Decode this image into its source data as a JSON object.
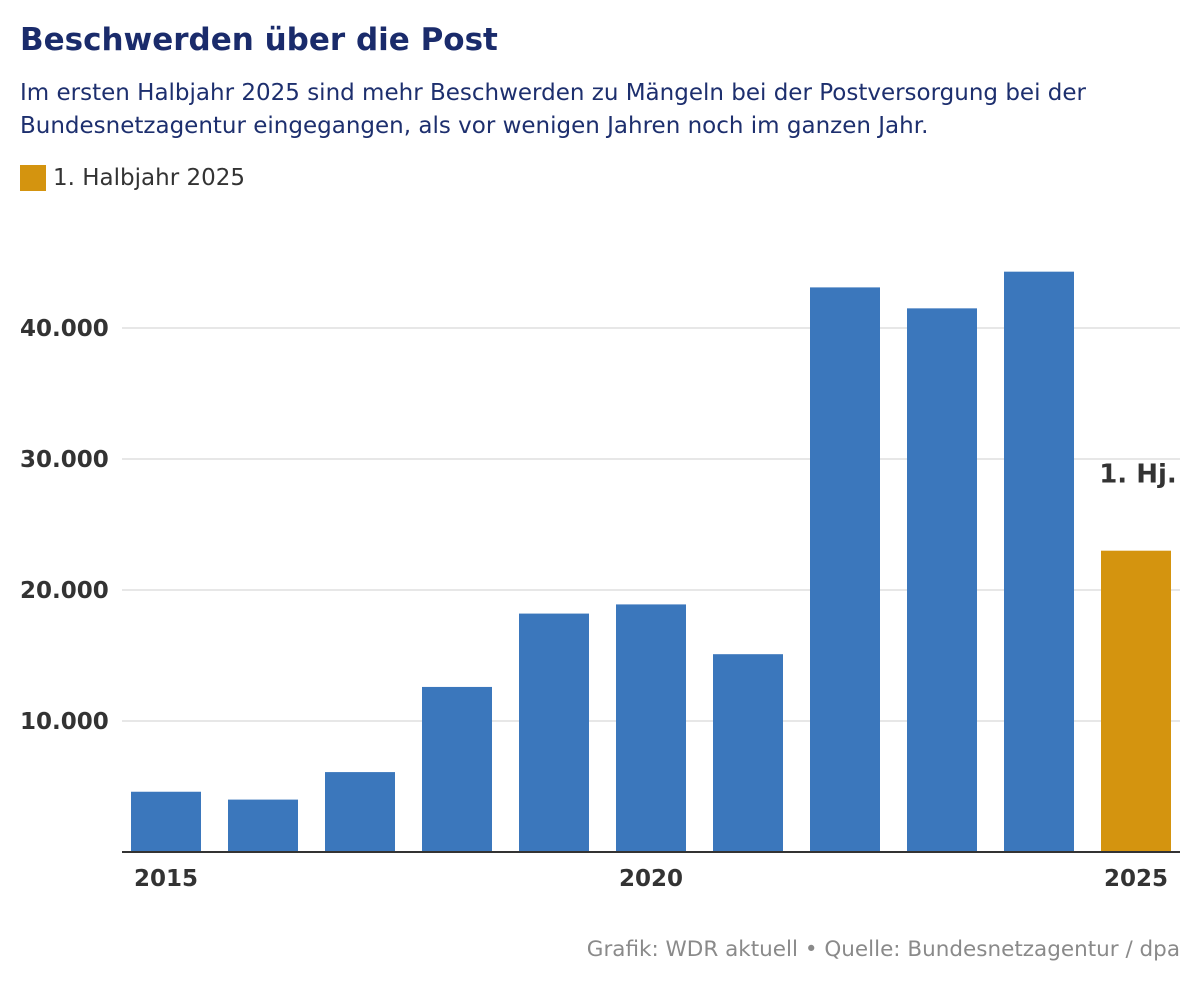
{
  "chart_data": {
    "type": "bar",
    "title": "Beschwerden über die Post",
    "subtitle": "Im ersten Halbjahr 2025 sind mehr Beschwerden zu Mängeln bei der Postversorgung bei der Bundesnetzagentur eingegangen, als vor wenigen Jahren noch im ganzen Jahr.",
    "x": [
      2015,
      2016,
      2017,
      2018,
      2019,
      2020,
      2021,
      2022,
      2023,
      2024,
      2025
    ],
    "values": [
      4600,
      4000,
      6100,
      12600,
      18200,
      18900,
      15100,
      43100,
      41500,
      44300,
      23000
    ],
    "highlight_index": 10,
    "x_tick_values": [
      2015,
      2020,
      2025
    ],
    "x_tick_labels": [
      "2015",
      "2020",
      "2025"
    ],
    "y_ticks": [
      10000,
      20000,
      30000,
      40000
    ],
    "y_tick_labels": [
      "10.000",
      "20.000",
      "30.000",
      "40.000"
    ],
    "ylim": [
      0,
      45000
    ],
    "xlabel": "",
    "ylabel": "",
    "grid": true,
    "annotation": {
      "x": 2025,
      "text": "1. Hj."
    },
    "legend": {
      "label": "1. Halbjahr 2025",
      "color": "#d4940f"
    },
    "colors": {
      "bar": "#3b77bc",
      "highlight": "#d4940f"
    }
  },
  "footer": {
    "credit": "Grafik: WDR aktuell",
    "separator": "•",
    "source": "Quelle: Bundesnetzagentur / dpa"
  }
}
